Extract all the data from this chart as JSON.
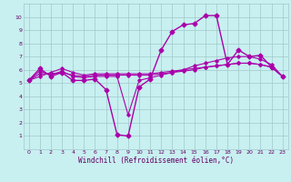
{
  "title": "",
  "xlabel": "Windchill (Refroidissement éolien,°C)",
  "background_color": "#c8f0f0",
  "grid_color": "#a0c8c8",
  "line_color": "#aa00aa",
  "x_ticks": [
    0,
    1,
    2,
    3,
    4,
    5,
    6,
    7,
    8,
    9,
    10,
    11,
    12,
    13,
    14,
    15,
    16,
    17,
    18,
    19,
    20,
    21,
    22,
    23
  ],
  "ylim": [
    0,
    11
  ],
  "xlim": [
    -0.5,
    23.5
  ],
  "series": [
    {
      "x": [
        0,
        1,
        2,
        3,
        4,
        5,
        6,
        7,
        8,
        9,
        10,
        11,
        12,
        13,
        14,
        15,
        16,
        17,
        18,
        19,
        20,
        21,
        22,
        23
      ],
      "y": [
        5.2,
        6.1,
        5.5,
        5.8,
        5.2,
        5.2,
        5.3,
        4.5,
        1.1,
        1.0,
        4.7,
        5.3,
        7.5,
        8.9,
        9.4,
        9.5,
        10.1,
        10.1,
        6.4,
        7.5,
        7.0,
        7.1,
        6.2,
        5.5
      ],
      "marker": "D",
      "markersize": 2.5,
      "linewidth": 1.0,
      "linestyle": "-"
    },
    {
      "x": [
        0,
        1,
        2,
        3,
        4,
        5,
        6,
        7,
        8,
        9,
        10,
        11,
        12,
        13,
        14,
        15,
        16,
        17,
        18,
        19,
        20,
        21,
        22,
        23
      ],
      "y": [
        5.2,
        5.9,
        5.6,
        5.9,
        5.5,
        5.4,
        5.5,
        5.5,
        5.5,
        2.6,
        5.2,
        5.4,
        5.6,
        5.8,
        6.0,
        6.3,
        6.5,
        6.7,
        6.9,
        7.0,
        7.0,
        6.8,
        6.4,
        5.5
      ],
      "marker": "D",
      "markersize": 1.8,
      "linewidth": 0.8,
      "linestyle": "-"
    },
    {
      "x": [
        0,
        1,
        2,
        3,
        4,
        5,
        6,
        7,
        8,
        9,
        10,
        11,
        12,
        13,
        14,
        15,
        16,
        17,
        18,
        19,
        20,
        21,
        22,
        23
      ],
      "y": [
        5.2,
        5.7,
        5.7,
        5.8,
        5.6,
        5.5,
        5.6,
        5.6,
        5.6,
        5.6,
        5.6,
        5.6,
        5.7,
        5.8,
        5.9,
        6.0,
        6.2,
        6.3,
        6.4,
        6.5,
        6.5,
        6.4,
        6.2,
        5.5
      ],
      "marker": "D",
      "markersize": 1.8,
      "linewidth": 0.8,
      "linestyle": "-"
    },
    {
      "x": [
        0,
        1,
        2,
        3,
        4,
        5,
        6,
        7,
        8,
        9,
        10,
        11,
        12,
        13,
        14,
        15,
        16,
        17,
        18,
        19,
        20,
        21,
        22,
        23
      ],
      "y": [
        5.2,
        5.5,
        5.8,
        6.1,
        5.8,
        5.6,
        5.7,
        5.7,
        5.7,
        5.7,
        5.7,
        5.7,
        5.8,
        5.9,
        6.0,
        6.1,
        6.2,
        6.3,
        6.4,
        6.5,
        6.5,
        6.4,
        6.2,
        5.5
      ],
      "marker": "D",
      "markersize": 1.8,
      "linewidth": 0.8,
      "linestyle": "-"
    }
  ]
}
